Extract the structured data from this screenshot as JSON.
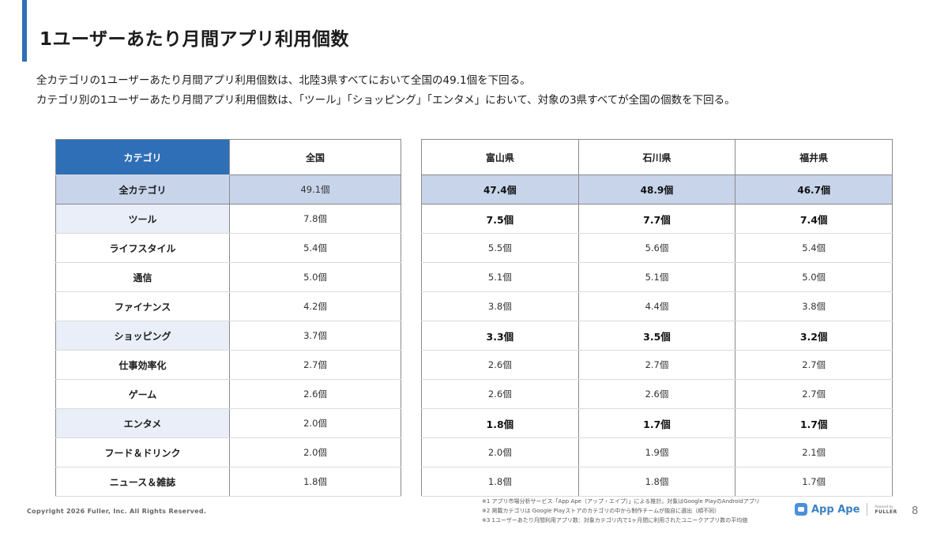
{
  "title": "1ユーザーあたり月間アプリ利用個数",
  "summary": [
    "全カテゴリの1ユーザーあたり月間アプリ利用個数は、北陸3県すべてにおいて全国の49.1個を下回る。",
    "カテゴリ別の1ユーザーあたり月間アプリ利用個数は、「ツール」「ショッピング」「エンタメ」において、対象の3県すべてが全国の個数を下回る。"
  ],
  "table": {
    "headers": {
      "category": "カテゴリ",
      "national": "全国",
      "toyama": "富山県",
      "ishikawa": "石川県",
      "fukui": "福井県"
    },
    "rows": [
      {
        "category": "全カテゴリ",
        "national": "49.1個",
        "toyama": "47.4個",
        "ishikawa": "48.9個",
        "fukui": "46.7個",
        "highlight": true
      },
      {
        "category": "ツール",
        "national": "7.8個",
        "toyama": "7.5個",
        "ishikawa": "7.7個",
        "fukui": "7.4個",
        "highlight": true
      },
      {
        "category": "ライフスタイル",
        "national": "5.4個",
        "toyama": "5.5個",
        "ishikawa": "5.6個",
        "fukui": "5.4個",
        "highlight": false
      },
      {
        "category": "通信",
        "national": "5.0個",
        "toyama": "5.1個",
        "ishikawa": "5.1個",
        "fukui": "5.0個",
        "highlight": false
      },
      {
        "category": "ファイナンス",
        "national": "4.2個",
        "toyama": "3.8個",
        "ishikawa": "4.4個",
        "fukui": "3.8個",
        "highlight": false
      },
      {
        "category": "ショッピング",
        "national": "3.7個",
        "toyama": "3.3個",
        "ishikawa": "3.5個",
        "fukui": "3.2個",
        "highlight": true
      },
      {
        "category": "仕事効率化",
        "national": "2.7個",
        "toyama": "2.6個",
        "ishikawa": "2.7個",
        "fukui": "2.7個",
        "highlight": false
      },
      {
        "category": "ゲーム",
        "national": "2.6個",
        "toyama": "2.6個",
        "ishikawa": "2.6個",
        "fukui": "2.7個",
        "highlight": false
      },
      {
        "category": "エンタメ",
        "national": "2.0個",
        "toyama": "1.8個",
        "ishikawa": "1.7個",
        "fukui": "1.7個",
        "highlight": true
      },
      {
        "category": "フード＆ドリンク",
        "national": "2.0個",
        "toyama": "2.0個",
        "ishikawa": "1.9個",
        "fukui": "2.1個",
        "highlight": false
      },
      {
        "category": "ニュース＆雑誌",
        "national": "1.8個",
        "toyama": "1.8個",
        "ishikawa": "1.8個",
        "fukui": "1.7個",
        "highlight": false
      }
    ]
  },
  "colors": {
    "accent": "#2f6fb7",
    "highlight_row": "#c7d4ea",
    "highlight_cell": "#e9eef8"
  },
  "footer": {
    "copyright": "Copyright 2026 Fuller, Inc. All Rights Reserved.",
    "notes": [
      "※1 アプリ市場分析サービス「App Ape（アップ・エイプ）」による推計。対象はGoogle PlayのAndroidアプリ",
      "※2 掲載カテゴリは Google Playストアのカテゴリの中から制作チームが独自に選出（順不同）",
      "※3 1ユーザーあたり月間利用アプリ数：対象カテゴリ内で1ヶ月間に利用されたユニークアプリ数の平均値"
    ],
    "logo_text": "App Ape",
    "powered_by": "Powered by",
    "fuller": "FULLER",
    "page_number": "8"
  }
}
